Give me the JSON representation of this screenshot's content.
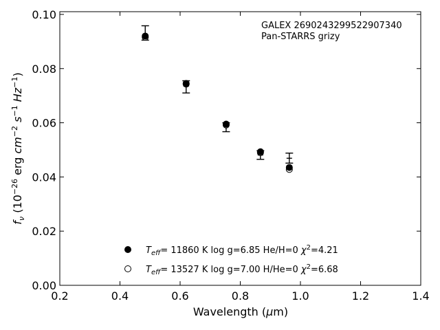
{
  "chart_data": {
    "type": "scatter",
    "title": "",
    "xlabel": "Wavelength (μm)",
    "ylabel": "f_ν (10^-26 erg cm^-2 s^-1 Hz^-1)",
    "xlim": [
      0.2,
      1.4
    ],
    "ylim": [
      0.0,
      0.101
    ],
    "xticks": [
      0.2,
      0.4,
      0.6,
      0.8,
      1.0,
      1.2,
      1.4
    ],
    "xtick_labels": [
      "0.2",
      "0.4",
      "0.6",
      "0.8",
      "1.0",
      "1.2",
      "1.4"
    ],
    "yticks": [
      0.0,
      0.02,
      0.04,
      0.06,
      0.08,
      0.1
    ],
    "ytick_labels": [
      "0.00",
      "0.02",
      "0.04",
      "0.06",
      "0.08",
      "0.10"
    ],
    "grid": false,
    "annotation": [
      "GALEX 2690243299522907340",
      "Pan-STARRS grizy"
    ],
    "observed": [
      {
        "x": 0.484,
        "y": 0.0925,
        "err_low": 0.0905,
        "err_high": 0.0958
      },
      {
        "x": 0.62,
        "y": 0.0735,
        "err_low": 0.071,
        "err_high": 0.0755
      },
      {
        "x": 0.753,
        "y": 0.0587,
        "err_low": 0.0567,
        "err_high": 0.06
      },
      {
        "x": 0.867,
        "y": 0.0481,
        "err_low": 0.0465,
        "err_high": 0.0497
      },
      {
        "x": 0.963,
        "y": 0.0469,
        "err_low": 0.0451,
        "err_high": 0.0488
      }
    ],
    "series": [
      {
        "name": "T_eff= 11860 K  log g=6.85  He/H=0  χ²=4.21",
        "label_parts": {
          "temp": "= 11860 K  log g=6.85  He/H=0  ",
          "chi": "=4.21"
        },
        "marker": "filled",
        "x": [
          0.484,
          0.62,
          0.753,
          0.867,
          0.963
        ],
        "y": [
          0.092,
          0.0745,
          0.0595,
          0.0493,
          0.0435
        ]
      },
      {
        "name": "T_eff= 13527 K  log g=7.00  H/He=0  χ²=6.68",
        "label_parts": {
          "temp": "= 13527 K  log g=7.00  H/He=0  ",
          "chi": "=6.68"
        },
        "marker": "open",
        "x": [
          0.484,
          0.62,
          0.753,
          0.867,
          0.963
        ],
        "y": [
          0.0916,
          0.0743,
          0.0592,
          0.049,
          0.0428
        ]
      }
    ],
    "legend_position": "bottom-center"
  }
}
